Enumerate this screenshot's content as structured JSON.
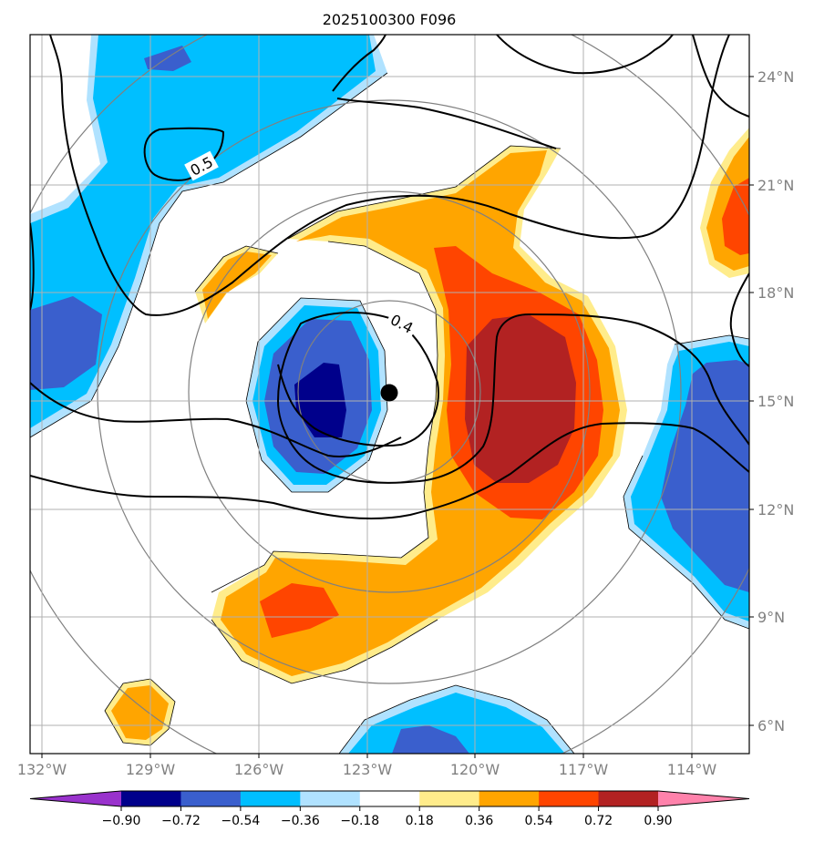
{
  "title": "2025100300 F096",
  "map": {
    "lon_ticks": [
      "132°W",
      "129°W",
      "126°W",
      "123°W",
      "120°W",
      "117°W",
      "114°W"
    ],
    "lat_ticks": [
      "24°N",
      "21°N",
      "18°N",
      "15°N",
      "12°N",
      "9°N",
      "6°N"
    ],
    "center_marker": "storm-center-dot",
    "contour_labels": [
      "0.5",
      "0.4"
    ]
  },
  "colorbar": {
    "ticks": [
      "−0.90",
      "−0.72",
      "−0.54",
      "−0.36",
      "−0.18",
      "0.18",
      "0.36",
      "0.54",
      "0.72",
      "0.90"
    ],
    "colors": [
      "#9932cc",
      "#00008b",
      "#3a5fcd",
      "#00bfff",
      "#b0e2ff",
      "#ffffff",
      "#ffec8b",
      "#ffa500",
      "#ff4500",
      "#b22222",
      "#ff82ab"
    ]
  }
}
